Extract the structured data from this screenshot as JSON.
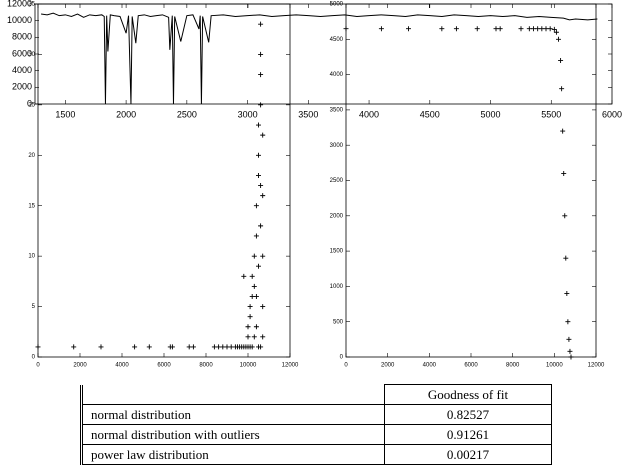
{
  "chart_data": [
    {
      "type": "line",
      "xlim": [
        1250,
        6000
      ],
      "ylim": [
        0,
        12000
      ],
      "xticks": [
        1500,
        2000,
        2500,
        3000,
        3500,
        4000,
        4500,
        5000,
        5500,
        6000
      ],
      "yticks": [
        0,
        2000,
        4000,
        6000,
        8000,
        10000,
        12000
      ],
      "color": "#000000",
      "x": [
        1300,
        1350,
        1400,
        1450,
        1500,
        1550,
        1600,
        1650,
        1700,
        1750,
        1800,
        1820,
        1830,
        1840,
        1850,
        1870,
        1900,
        1950,
        2000,
        2020,
        2040,
        2050,
        2080,
        2100,
        2150,
        2200,
        2250,
        2300,
        2350,
        2360,
        2380,
        2390,
        2400,
        2450,
        2500,
        2550,
        2600,
        2610,
        2620,
        2630,
        2680,
        2700,
        2800,
        2900,
        3000,
        3100,
        3200,
        3300,
        3400,
        3500,
        3600,
        3700,
        3800,
        3900,
        4000,
        4100,
        4200,
        4300,
        4400,
        4500,
        4600,
        4700,
        4800,
        4900,
        5000,
        5100,
        5200,
        5300,
        5400,
        5500,
        5600,
        5650,
        5700,
        5800,
        5880
      ],
      "values": [
        10800,
        10700,
        10900,
        10600,
        10700,
        10500,
        10800,
        10400,
        10700,
        10600,
        10700,
        10500,
        0,
        10600,
        6300,
        10700,
        10600,
        10500,
        8500,
        10600,
        0,
        10500,
        7300,
        10600,
        10700,
        10500,
        10600,
        10700,
        10400,
        6500,
        10600,
        0,
        10500,
        7500,
        10600,
        10700,
        9000,
        10600,
        0,
        10500,
        7400,
        10600,
        10700,
        10500,
        10600,
        10700,
        10500,
        10600,
        10700,
        10600,
        10500,
        10600,
        10700,
        10500,
        10600,
        10700,
        10600,
        10500,
        10700,
        10600,
        10500,
        10700,
        10600,
        10500,
        10600,
        10500,
        10600,
        10400,
        10500,
        10400,
        10300,
        10100,
        10200,
        10100,
        10200
      ]
    },
    {
      "type": "scatter",
      "xlim": [
        0,
        12000
      ],
      "ylim": [
        0,
        35
      ],
      "xticks": [
        0,
        2000,
        4000,
        6000,
        8000,
        10000,
        12000
      ],
      "yticks": [
        0,
        5,
        10,
        15,
        20,
        25,
        30,
        35
      ],
      "color": "#000000",
      "x": [
        0,
        1700,
        3000,
        4600,
        5300,
        6300,
        6400,
        7200,
        7400,
        8400,
        8600,
        8800,
        9000,
        9200,
        9400,
        9500,
        9600,
        9700,
        9800,
        9900,
        10000,
        10000,
        10100,
        10100,
        10200,
        10200,
        10300,
        10300,
        10400,
        10400,
        10500,
        10500,
        10500,
        10600,
        10600,
        10600,
        10600,
        10700,
        10700,
        10700,
        10700,
        10700,
        10600,
        10500,
        10400,
        10300,
        10200,
        10100,
        10000,
        9800,
        10500,
        10600,
        10600,
        10400
      ],
      "values": [
        1,
        1,
        1,
        1,
        1,
        1,
        1,
        1,
        1,
        1,
        1,
        1,
        1,
        1,
        1,
        1,
        1,
        1,
        1,
        1,
        2,
        3,
        4,
        5,
        6,
        8,
        7,
        10,
        12,
        15,
        18,
        20,
        23,
        25,
        28,
        30,
        33,
        22,
        16,
        10,
        5,
        2,
        1,
        1,
        3,
        2,
        1,
        1,
        1,
        8,
        9,
        13,
        17,
        6
      ]
    },
    {
      "type": "scatter",
      "xlim": [
        0,
        12000
      ],
      "ylim": [
        0,
        5000
      ],
      "xticks": [
        0,
        2000,
        4000,
        6000,
        8000,
        10000,
        12000
      ],
      "yticks": [
        0,
        500,
        1000,
        1500,
        2000,
        2500,
        3000,
        3500,
        4000,
        4500,
        5000
      ],
      "color": "#000000",
      "x": [
        0,
        1700,
        3000,
        4600,
        5300,
        6300,
        7200,
        7400,
        8400,
        8800,
        9000,
        9200,
        9400,
        9600,
        9800,
        10000,
        10100,
        10200,
        10300,
        10350,
        10400,
        10450,
        10500,
        10550,
        10600,
        10650,
        10700,
        10750,
        10800
      ],
      "values": [
        4650,
        4650,
        4650,
        4650,
        4650,
        4650,
        4650,
        4650,
        4650,
        4650,
        4650,
        4650,
        4650,
        4650,
        4650,
        4640,
        4600,
        4500,
        4200,
        3800,
        3200,
        2600,
        2000,
        1400,
        900,
        500,
        250,
        80,
        0
      ]
    }
  ],
  "table": {
    "header": "Goodness of fit",
    "rows": [
      [
        "normal distribution",
        0.82527
      ],
      [
        "normal distribution with outliers",
        0.91261
      ],
      [
        "power law distribution",
        0.00217
      ]
    ]
  }
}
